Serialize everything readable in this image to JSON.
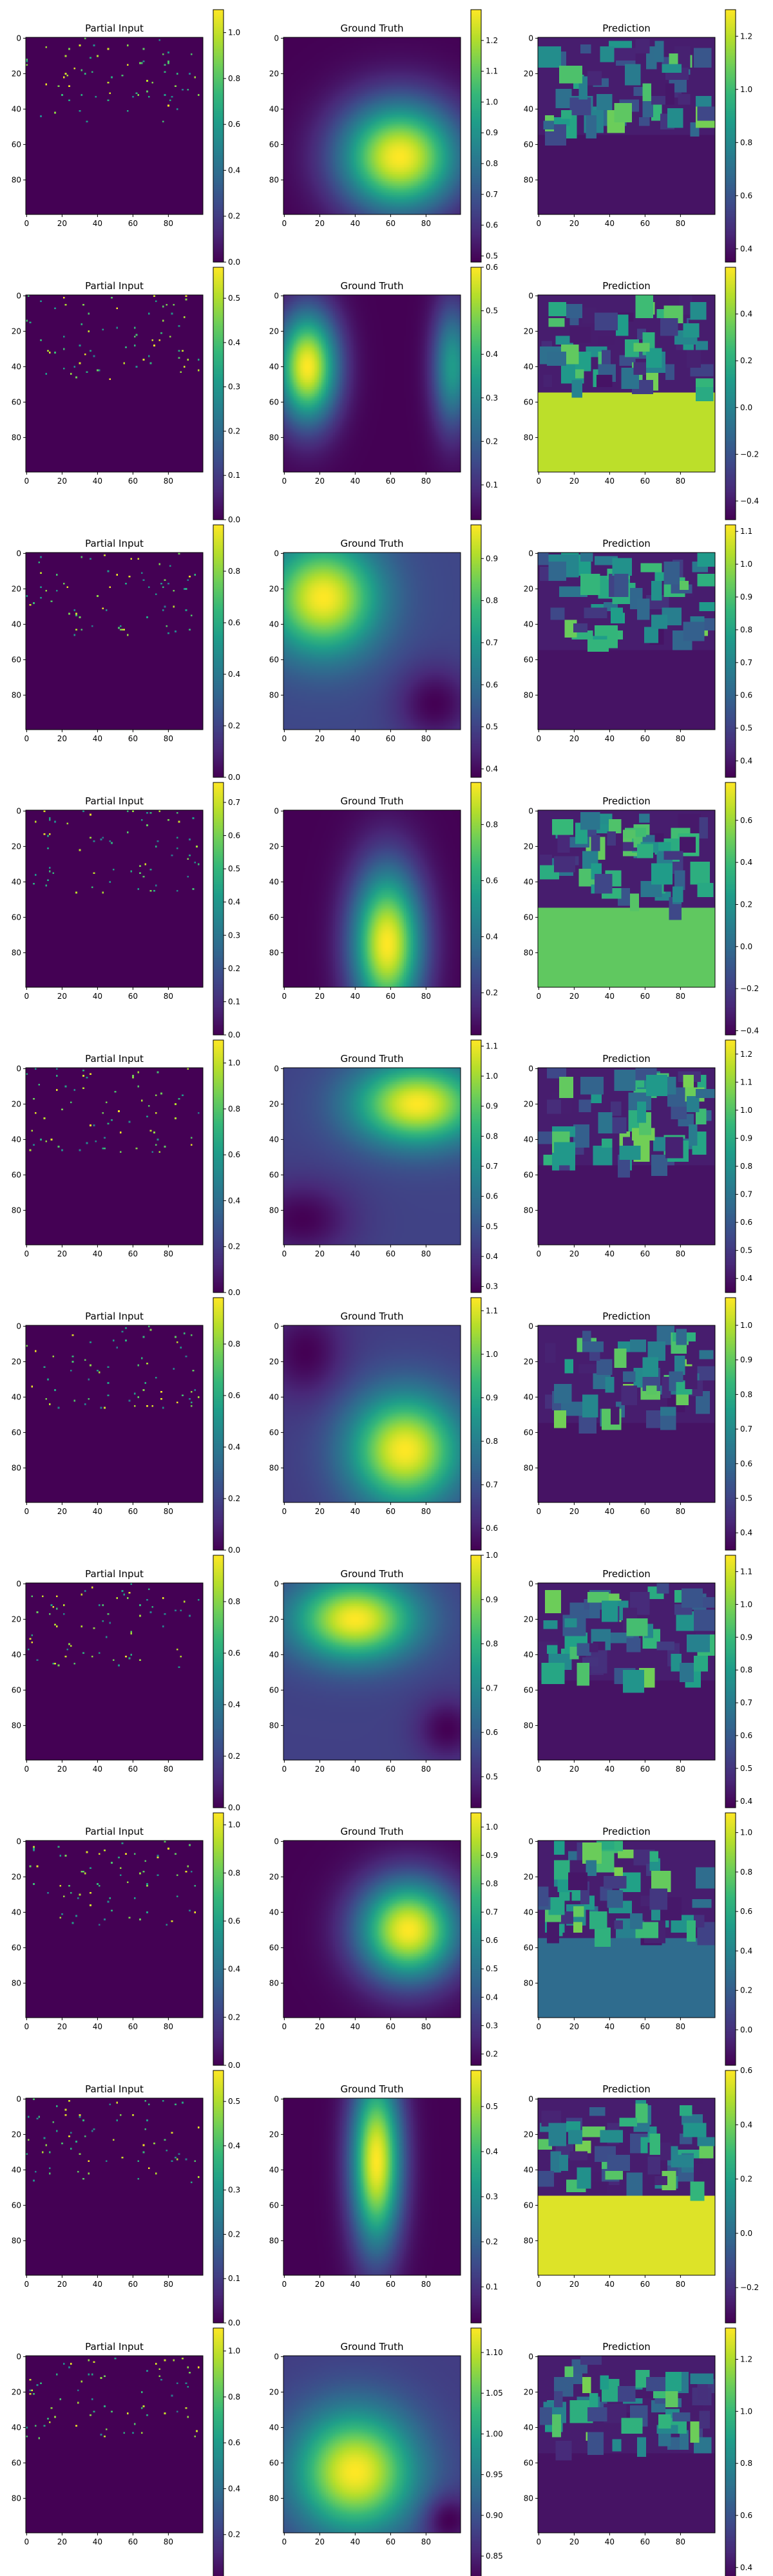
{
  "colors": {
    "viridis": [
      "#440154",
      "#482878",
      "#3e4989",
      "#31688e",
      "#26828e",
      "#1f9e89",
      "#35b779",
      "#6ece58",
      "#b5de2b",
      "#fde725"
    ],
    "axis": "#000000",
    "background": "#ffffff"
  },
  "chart_data": [
    {
      "type": "heatmap",
      "kind": "partial",
      "title": "Partial Input",
      "x_ticks": [
        "0",
        "20",
        "40",
        "60",
        "80"
      ],
      "y_ticks": [
        "0",
        "20",
        "40",
        "60",
        "80"
      ],
      "colorbar": {
        "min": 0.0,
        "max": 1.1,
        "ticks": [
          "0.0",
          "0.2",
          "0.4",
          "0.6",
          "0.8",
          "1.0"
        ]
      }
    },
    {
      "type": "heatmap",
      "kind": "truth",
      "title": "Ground Truth",
      "field": {
        "bumps": [
          {
            "x": 65,
            "y": 67,
            "amp": 0.8,
            "sx": 24,
            "sy": 22
          }
        ],
        "base": 0.5
      },
      "x_ticks": [
        "0",
        "20",
        "40",
        "60",
        "80"
      ],
      "y_ticks": [
        "0",
        "20",
        "40",
        "60",
        "80"
      ],
      "colorbar": {
        "min": 0.48,
        "max": 1.3,
        "ticks": [
          "0.5",
          "0.6",
          "0.7",
          "0.8",
          "0.9",
          "1.0",
          "1.1",
          "1.2"
        ]
      }
    },
    {
      "type": "heatmap",
      "kind": "pred",
      "title": "Prediction",
      "x_ticks": [
        "0",
        "20",
        "40",
        "60",
        "80"
      ],
      "y_ticks": [
        "0",
        "20",
        "40",
        "60",
        "80"
      ],
      "colorbar": {
        "min": 0.35,
        "max": 1.3,
        "ticks": [
          "0.4",
          "0.6",
          "0.8",
          "1.0",
          "1.2"
        ]
      }
    },
    {
      "type": "heatmap",
      "kind": "partial",
      "title": "Partial Input",
      "x_ticks": [
        "0",
        "20",
        "40",
        "60",
        "80"
      ],
      "y_ticks": [
        "0",
        "20",
        "40",
        "60",
        "80"
      ],
      "colorbar": {
        "min": 0.0,
        "max": 0.57,
        "ticks": [
          "0.0",
          "0.1",
          "0.2",
          "0.3",
          "0.4",
          "0.5"
        ]
      }
    },
    {
      "type": "heatmap",
      "kind": "truth",
      "title": "Ground Truth",
      "field": {
        "bumps": [
          {
            "x": 13,
            "y": 40,
            "amp": 0.55,
            "sx": 12,
            "sy": 22
          },
          {
            "x": 95,
            "y": 40,
            "amp": 0.3,
            "sx": 8,
            "sy": 25
          }
        ],
        "base": 0.02
      },
      "x_ticks": [
        "0",
        "20",
        "40",
        "60",
        "80"
      ],
      "y_ticks": [
        "0",
        "20",
        "40",
        "60",
        "80"
      ],
      "colorbar": {
        "min": 0.02,
        "max": 0.6,
        "ticks": [
          "0.1",
          "0.2",
          "0.3",
          "0.4",
          "0.5",
          "0.6"
        ]
      }
    },
    {
      "type": "heatmap",
      "kind": "pred",
      "title": "Prediction",
      "fill": 0.9,
      "x_ticks": [
        "0",
        "20",
        "40",
        "60",
        "80"
      ],
      "y_ticks": [
        "0",
        "20",
        "40",
        "60",
        "80"
      ],
      "colorbar": {
        "min": -0.48,
        "max": 0.6,
        "ticks": [
          "−0.4",
          "−0.2",
          "0.0",
          "0.2",
          "0.4"
        ]
      }
    },
    {
      "type": "heatmap",
      "kind": "partial",
      "title": "Partial Input",
      "x_ticks": [
        "0",
        "20",
        "40",
        "60",
        "80"
      ],
      "y_ticks": [
        "0",
        "20",
        "40",
        "60",
        "80"
      ],
      "colorbar": {
        "min": 0.0,
        "max": 0.98,
        "ticks": [
          "0.0",
          "0.2",
          "0.4",
          "0.6",
          "0.8"
        ]
      }
    },
    {
      "type": "heatmap",
      "kind": "truth",
      "title": "Ground Truth",
      "field": {
        "bumps": [
          {
            "x": 22,
            "y": 25,
            "amp": 0.55,
            "sx": 22,
            "sy": 22
          },
          {
            "x": 85,
            "y": 85,
            "amp": -0.15,
            "sx": 15,
            "sy": 15
          }
        ],
        "base": 0.45
      },
      "x_ticks": [
        "0",
        "20",
        "40",
        "60",
        "80"
      ],
      "y_ticks": [
        "0",
        "20",
        "40",
        "60",
        "80"
      ],
      "colorbar": {
        "min": 0.38,
        "max": 0.98,
        "ticks": [
          "0.4",
          "0.5",
          "0.6",
          "0.7",
          "0.8",
          "0.9"
        ]
      }
    },
    {
      "type": "heatmap",
      "kind": "pred",
      "title": "Prediction",
      "x_ticks": [
        "0",
        "20",
        "40",
        "60",
        "80"
      ],
      "y_ticks": [
        "0",
        "20",
        "40",
        "60",
        "80"
      ],
      "colorbar": {
        "min": 0.35,
        "max": 1.12,
        "ticks": [
          "0.4",
          "0.5",
          "0.6",
          "0.7",
          "0.8",
          "0.9",
          "1.0",
          "1.1"
        ]
      }
    },
    {
      "type": "heatmap",
      "kind": "partial",
      "title": "Partial Input",
      "x_ticks": [
        "0",
        "20",
        "40",
        "60",
        "80"
      ],
      "y_ticks": [
        "0",
        "20",
        "40",
        "60",
        "80"
      ],
      "colorbar": {
        "min": 0.0,
        "max": 0.76,
        "ticks": [
          "0.0",
          "0.1",
          "0.2",
          "0.3",
          "0.4",
          "0.5",
          "0.6",
          "0.7"
        ]
      }
    },
    {
      "type": "heatmap",
      "kind": "truth",
      "title": "Ground Truth",
      "field": {
        "bumps": [
          {
            "x": 58,
            "y": 75,
            "amp": 0.85,
            "sx": 14,
            "sy": 30
          }
        ],
        "base": 0.05
      },
      "x_ticks": [
        "0",
        "20",
        "40",
        "60",
        "80"
      ],
      "y_ticks": [
        "0",
        "20",
        "40",
        "60",
        "80"
      ],
      "colorbar": {
        "min": 0.05,
        "max": 0.95,
        "ticks": [
          "0.2",
          "0.4",
          "0.6",
          "0.8"
        ]
      }
    },
    {
      "type": "heatmap",
      "kind": "pred",
      "title": "Prediction",
      "fill": 0.75,
      "x_ticks": [
        "0",
        "20",
        "40",
        "60",
        "80"
      ],
      "y_ticks": [
        "0",
        "20",
        "40",
        "60",
        "80"
      ],
      "colorbar": {
        "min": -0.42,
        "max": 0.78,
        "ticks": [
          "−0.4",
          "−0.2",
          "0.0",
          "0.2",
          "0.4",
          "0.6"
        ]
      }
    },
    {
      "type": "heatmap",
      "kind": "partial",
      "title": "Partial Input",
      "x_ticks": [
        "0",
        "20",
        "40",
        "60",
        "80"
      ],
      "y_ticks": [
        "0",
        "20",
        "40",
        "60",
        "80"
      ],
      "colorbar": {
        "min": 0.0,
        "max": 1.1,
        "ticks": [
          "0.0",
          "0.2",
          "0.4",
          "0.6",
          "0.8",
          "1.0"
        ]
      }
    },
    {
      "type": "heatmap",
      "kind": "truth",
      "title": "Ground Truth",
      "field": {
        "bumps": [
          {
            "x": 75,
            "y": 20,
            "amp": 0.8,
            "sx": 25,
            "sy": 16
          },
          {
            "x": 10,
            "y": 85,
            "amp": -0.2,
            "sx": 20,
            "sy": 15
          }
        ],
        "base": 0.5
      },
      "x_ticks": [
        "0",
        "20",
        "40",
        "60",
        "80"
      ],
      "y_ticks": [
        "0",
        "20",
        "40",
        "60",
        "80"
      ],
      "colorbar": {
        "min": 0.28,
        "max": 1.12,
        "ticks": [
          "0.3",
          "0.4",
          "0.5",
          "0.6",
          "0.7",
          "0.8",
          "0.9",
          "1.0",
          "1.1"
        ]
      }
    },
    {
      "type": "heatmap",
      "kind": "pred",
      "title": "Prediction",
      "x_ticks": [
        "0",
        "20",
        "40",
        "60",
        "80"
      ],
      "y_ticks": [
        "0",
        "20",
        "40",
        "60",
        "80"
      ],
      "colorbar": {
        "min": 0.35,
        "max": 1.25,
        "ticks": [
          "0.4",
          "0.5",
          "0.6",
          "0.7",
          "0.8",
          "0.9",
          "1.0",
          "1.1",
          "1.2"
        ]
      }
    },
    {
      "type": "heatmap",
      "kind": "partial",
      "title": "Partial Input",
      "x_ticks": [
        "0",
        "20",
        "40",
        "60",
        "80"
      ],
      "y_ticks": [
        "0",
        "20",
        "40",
        "60",
        "80"
      ],
      "colorbar": {
        "min": 0.0,
        "max": 0.98,
        "ticks": [
          "0.0",
          "0.2",
          "0.4",
          "0.6",
          "0.8"
        ]
      }
    },
    {
      "type": "heatmap",
      "kind": "truth",
      "title": "Ground Truth",
      "field": {
        "bumps": [
          {
            "x": 68,
            "y": 70,
            "amp": 0.45,
            "sx": 22,
            "sy": 22
          },
          {
            "x": 12,
            "y": 15,
            "amp": -0.1,
            "sx": 15,
            "sy": 18
          }
        ],
        "base": 0.68
      },
      "x_ticks": [
        "0",
        "20",
        "40",
        "60",
        "80"
      ],
      "y_ticks": [
        "0",
        "20",
        "40",
        "60",
        "80"
      ],
      "colorbar": {
        "min": 0.55,
        "max": 1.13,
        "ticks": [
          "0.6",
          "0.7",
          "0.8",
          "0.9",
          "1.0",
          "1.1"
        ]
      }
    },
    {
      "type": "heatmap",
      "kind": "pred",
      "title": "Prediction",
      "x_ticks": [
        "0",
        "20",
        "40",
        "60",
        "80"
      ],
      "y_ticks": [
        "0",
        "20",
        "40",
        "60",
        "80"
      ],
      "colorbar": {
        "min": 0.35,
        "max": 1.08,
        "ticks": [
          "0.4",
          "0.5",
          "0.6",
          "0.7",
          "0.8",
          "0.9",
          "1.0"
        ]
      }
    },
    {
      "type": "heatmap",
      "kind": "partial",
      "title": "Partial Input",
      "x_ticks": [
        "0",
        "20",
        "40",
        "60",
        "80"
      ],
      "y_ticks": [
        "0",
        "20",
        "40",
        "60",
        "80"
      ],
      "colorbar": {
        "min": 0.0,
        "max": 0.98,
        "ticks": [
          "0.0",
          "0.2",
          "0.4",
          "0.6",
          "0.8"
        ]
      }
    },
    {
      "type": "heatmap",
      "kind": "truth",
      "title": "Ground Truth",
      "field": {
        "bumps": [
          {
            "x": 40,
            "y": 20,
            "amp": 0.5,
            "sx": 24,
            "sy": 16
          },
          {
            "x": 92,
            "y": 82,
            "amp": -0.12,
            "sx": 12,
            "sy": 12
          }
        ],
        "base": 0.52
      },
      "x_ticks": [
        "0",
        "20",
        "40",
        "60",
        "80"
      ],
      "y_ticks": [
        "0",
        "20",
        "40",
        "60",
        "80"
      ],
      "colorbar": {
        "min": 0.43,
        "max": 1.0,
        "ticks": [
          "0.5",
          "0.6",
          "0.7",
          "0.8",
          "0.9",
          "1.0"
        ]
      }
    },
    {
      "type": "heatmap",
      "kind": "pred",
      "title": "Prediction",
      "x_ticks": [
        "0",
        "20",
        "40",
        "60",
        "80"
      ],
      "y_ticks": [
        "0",
        "20",
        "40",
        "60",
        "80"
      ],
      "colorbar": {
        "min": 0.38,
        "max": 1.15,
        "ticks": [
          "0.4",
          "0.5",
          "0.6",
          "0.7",
          "0.8",
          "0.9",
          "1.0",
          "1.1"
        ]
      }
    },
    {
      "type": "heatmap",
      "kind": "partial",
      "title": "Partial Input",
      "x_ticks": [
        "0",
        "20",
        "40",
        "60",
        "80"
      ],
      "y_ticks": [
        "0",
        "20",
        "40",
        "60",
        "80"
      ],
      "colorbar": {
        "min": 0.0,
        "max": 1.05,
        "ticks": [
          "0.0",
          "0.2",
          "0.4",
          "0.6",
          "0.8",
          "1.0"
        ]
      }
    },
    {
      "type": "heatmap",
      "kind": "truth",
      "title": "Ground Truth",
      "field": {
        "bumps": [
          {
            "x": 70,
            "y": 50,
            "amp": 0.85,
            "sx": 20,
            "sy": 20
          }
        ],
        "base": 0.18
      },
      "x_ticks": [
        "0",
        "20",
        "40",
        "60",
        "80"
      ],
      "y_ticks": [
        "0",
        "20",
        "40",
        "60",
        "80"
      ],
      "colorbar": {
        "min": 0.16,
        "max": 1.05,
        "ticks": [
          "0.2",
          "0.3",
          "0.4",
          "0.5",
          "0.6",
          "0.7",
          "0.8",
          "0.9",
          "1.0"
        ]
      }
    },
    {
      "type": "heatmap",
      "kind": "pred",
      "title": "Prediction",
      "fill": 0.35,
      "x_ticks": [
        "0",
        "20",
        "40",
        "60",
        "80"
      ],
      "y_ticks": [
        "0",
        "20",
        "40",
        "60",
        "80"
      ],
      "colorbar": {
        "min": -0.18,
        "max": 1.1,
        "ticks": [
          "0.0",
          "0.2",
          "0.4",
          "0.6",
          "0.8",
          "1.0"
        ]
      }
    },
    {
      "type": "heatmap",
      "kind": "partial",
      "title": "Partial Input",
      "x_ticks": [
        "0",
        "20",
        "40",
        "60",
        "80"
      ],
      "y_ticks": [
        "0",
        "20",
        "40",
        "60",
        "80"
      ],
      "colorbar": {
        "min": 0.0,
        "max": 0.57,
        "ticks": [
          "0.0",
          "0.1",
          "0.2",
          "0.3",
          "0.4",
          "0.5"
        ]
      }
    },
    {
      "type": "heatmap",
      "kind": "truth",
      "title": "Ground Truth",
      "field": {
        "bumps": [
          {
            "x": 52,
            "y": 35,
            "amp": 0.55,
            "sx": 10,
            "sy": 35
          }
        ],
        "base": 0.02
      },
      "x_ticks": [
        "0",
        "20",
        "40",
        "60",
        "80"
      ],
      "y_ticks": [
        "0",
        "20",
        "40",
        "60",
        "80"
      ],
      "colorbar": {
        "min": 0.02,
        "max": 0.58,
        "ticks": [
          "0.1",
          "0.2",
          "0.3",
          "0.4",
          "0.5"
        ]
      }
    },
    {
      "type": "heatmap",
      "kind": "pred",
      "title": "Prediction",
      "fill": 0.95,
      "x_ticks": [
        "0",
        "20",
        "40",
        "60",
        "80"
      ],
      "y_ticks": [
        "0",
        "20",
        "40",
        "60",
        "80"
      ],
      "colorbar": {
        "min": -0.33,
        "max": 0.6,
        "ticks": [
          "−0.2",
          "0.0",
          "0.2",
          "0.4",
          "0.6"
        ]
      }
    },
    {
      "type": "heatmap",
      "kind": "partial",
      "title": "Partial Input",
      "x_ticks": [
        "0",
        "20",
        "40",
        "60",
        "80"
      ],
      "y_ticks": [
        "0",
        "20",
        "40",
        "60",
        "80"
      ],
      "colorbar": {
        "min": 0.0,
        "max": 1.1,
        "ticks": [
          "0.0",
          "0.2",
          "0.4",
          "0.6",
          "0.8",
          "1.0"
        ]
      }
    },
    {
      "type": "heatmap",
      "kind": "truth",
      "title": "Ground Truth",
      "field": {
        "bumps": [
          {
            "x": 40,
            "y": 65,
            "amp": 0.3,
            "sx": 24,
            "sy": 24
          },
          {
            "x": 92,
            "y": 92,
            "amp": -0.08,
            "sx": 10,
            "sy": 10
          }
        ],
        "base": 0.83
      },
      "x_ticks": [
        "0",
        "20",
        "40",
        "60",
        "80"
      ],
      "y_ticks": [
        "0",
        "20",
        "40",
        "60",
        "80"
      ],
      "colorbar": {
        "min": 0.82,
        "max": 1.13,
        "ticks": [
          "0.85",
          "0.90",
          "0.95",
          "1.00",
          "1.05",
          "1.10"
        ]
      }
    },
    {
      "type": "heatmap",
      "kind": "pred",
      "title": "Prediction",
      "x_ticks": [
        "0",
        "20",
        "40",
        "60",
        "80"
      ],
      "y_ticks": [
        "0",
        "20",
        "40",
        "60",
        "80"
      ],
      "colorbar": {
        "min": 0.35,
        "max": 1.32,
        "ticks": [
          "0.4",
          "0.6",
          "0.8",
          "1.0",
          "1.2"
        ]
      }
    }
  ]
}
